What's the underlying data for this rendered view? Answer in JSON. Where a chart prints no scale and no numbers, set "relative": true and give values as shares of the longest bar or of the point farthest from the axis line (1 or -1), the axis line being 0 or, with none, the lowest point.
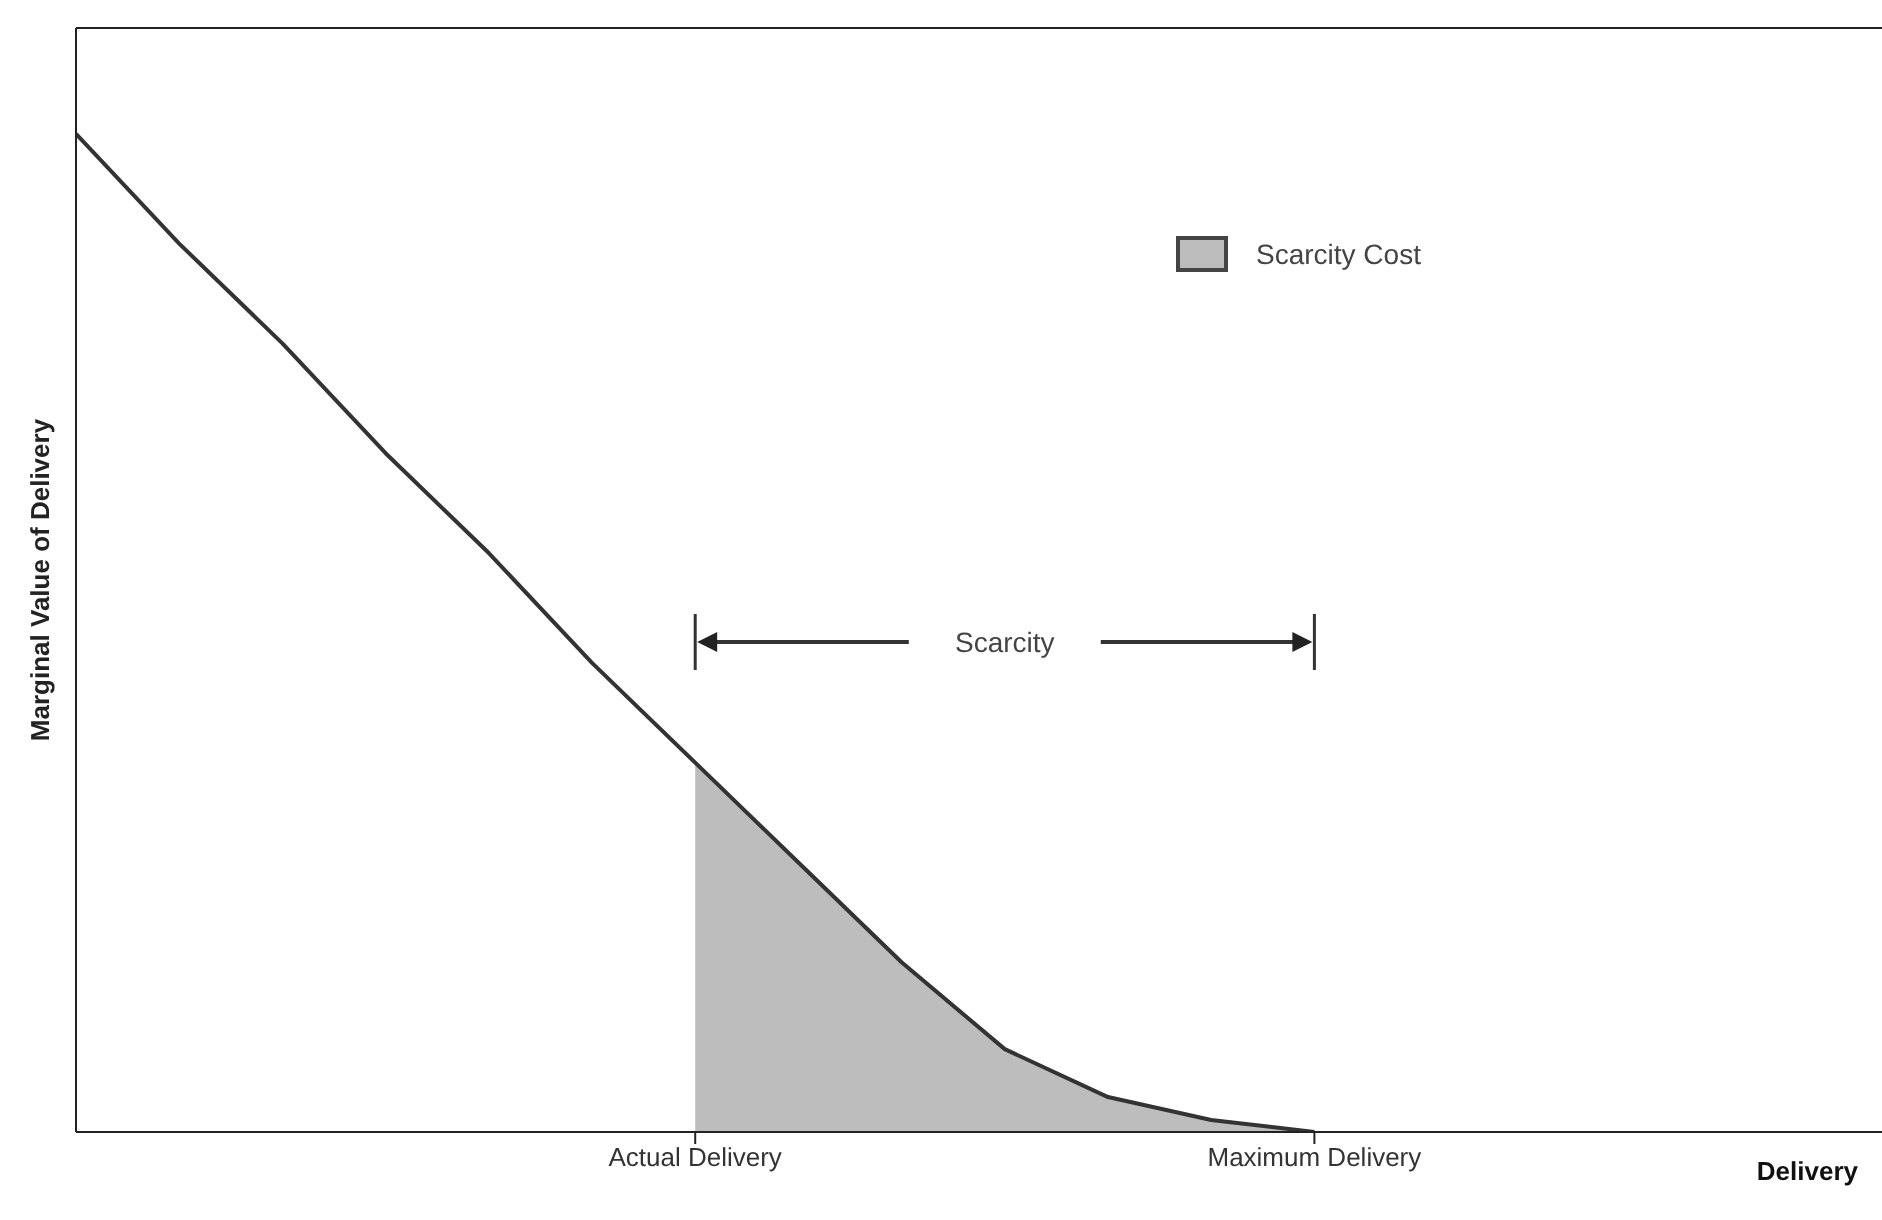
{
  "chart_data": {
    "type": "line",
    "relative": true,
    "ylabel": "Marginal Value of Delivery",
    "xlabel": "Delivery",
    "categories": [
      null,
      null,
      null,
      null,
      null,
      null,
      "Actual Delivery",
      null,
      null,
      null,
      null,
      null,
      "Maximum Delivery",
      null,
      null,
      null,
      null,
      null
    ],
    "series": [
      {
        "color": "#333333",
        "values": [
          1,
          0.89,
          0.79,
          0.68,
          0.58,
          0.47,
          0.37,
          0.27,
          0.17,
          0.083,
          0.035,
          0.012,
          0,
          null,
          null,
          null,
          null,
          null
        ]
      },
      {
        "type": "area",
        "name": "Scarcity Cost",
        "color": "#bdbdbd",
        "values": [
          null,
          null,
          null,
          null,
          null,
          null,
          0.37,
          0.27,
          0.17,
          0.083,
          0.035,
          0.012,
          0,
          null,
          null,
          null,
          null,
          null
        ]
      }
    ],
    "annotations": [
      "Scarcity"
    ],
    "legend": "top right"
  }
}
